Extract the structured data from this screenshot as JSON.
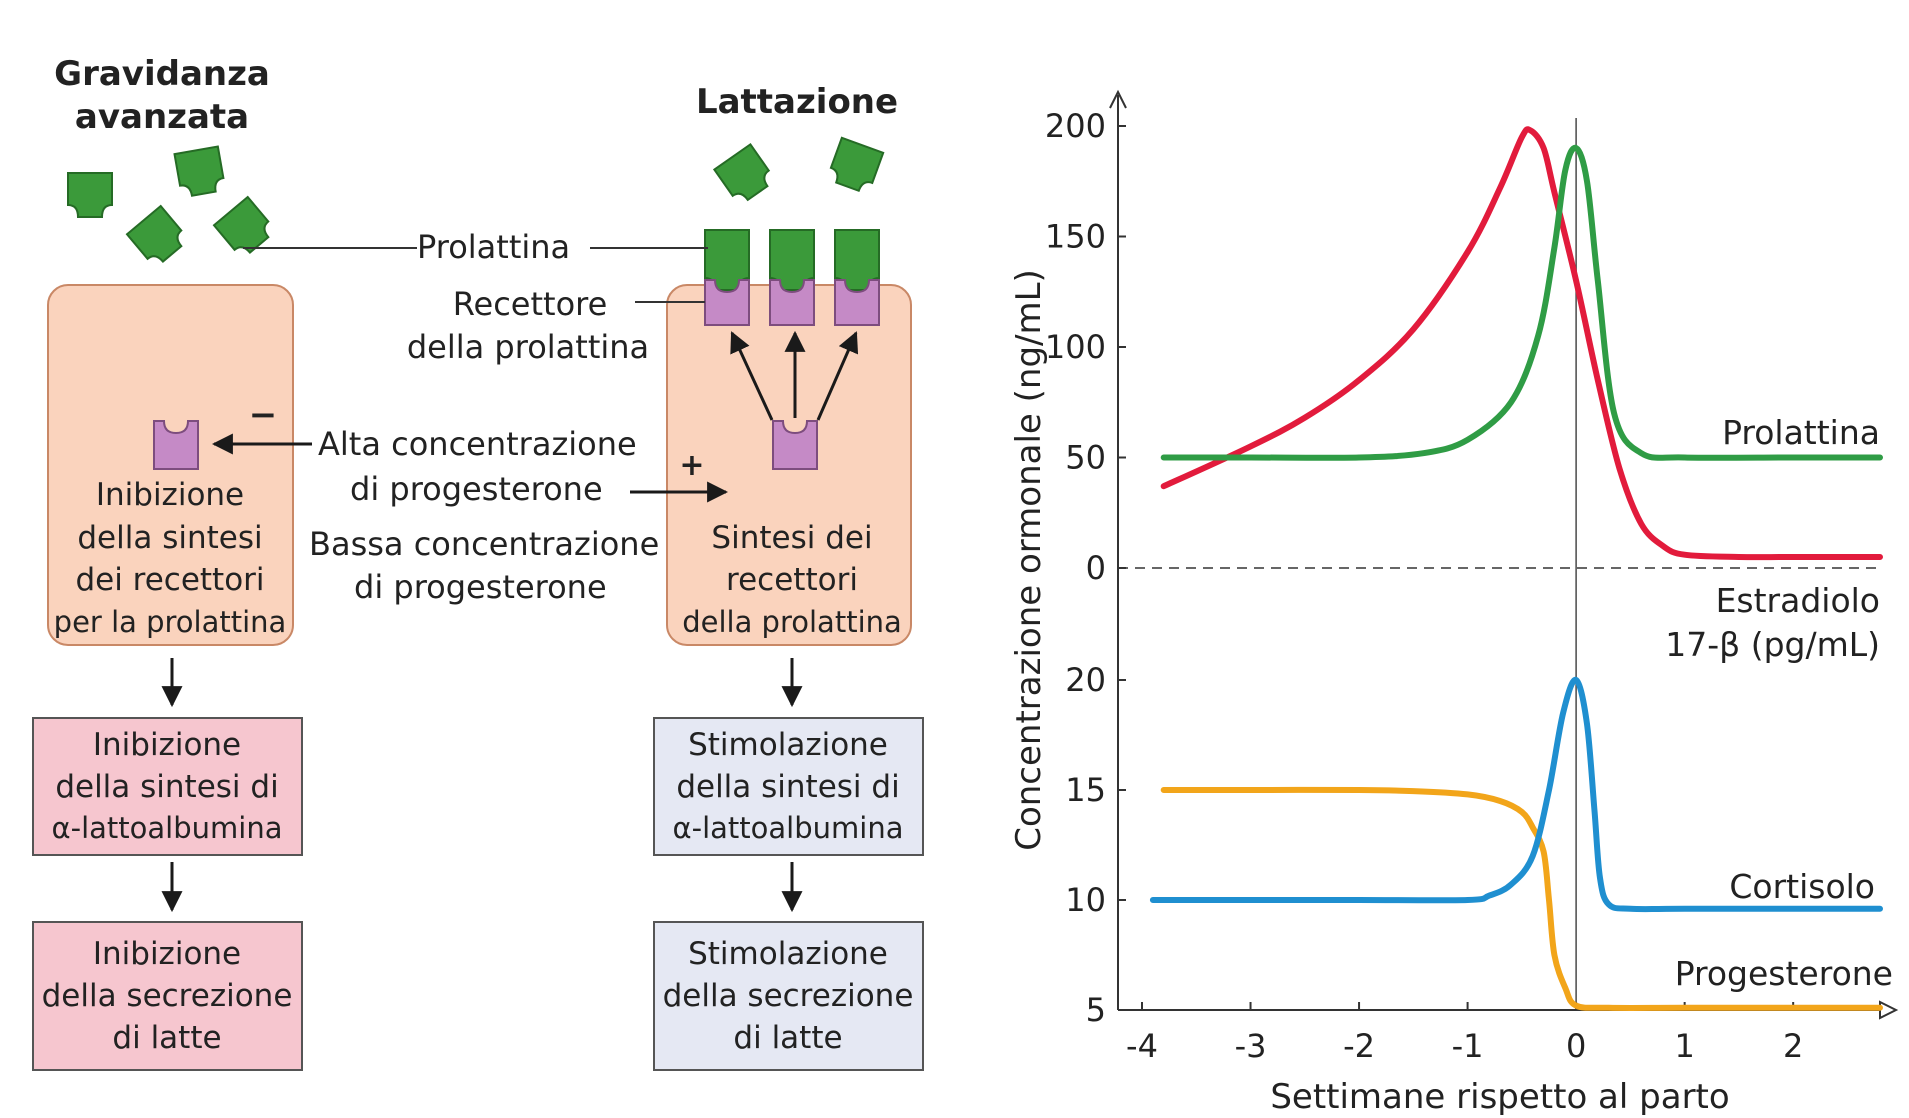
{
  "left": {
    "late_pregnancy_title": [
      "Gravidanza",
      "avanzata"
    ],
    "lactation_title": "Lattazione",
    "prolactin_label": "Prolattina",
    "receptor_label": [
      "Recettore",
      "della prolattina"
    ],
    "high_prog_label": [
      "Alta concentrazione",
      "di progesterone"
    ],
    "low_prog_label": [
      "Bassa concentrazione",
      "di progesterone"
    ],
    "minus_sign": "−",
    "plus_sign": "+",
    "left_cell_text": [
      "Inibizione",
      "della sintesi",
      "dei recettori",
      "per la prolattina"
    ],
    "right_cell_text": [
      "Sintesi dei",
      "recettori",
      "della prolattina"
    ],
    "left_box1": [
      "Inibizione",
      "della sintesi di",
      "α-lattoalbumina"
    ],
    "left_box2": [
      "Inibizione",
      "della secrezione",
      "di latte"
    ],
    "right_box1": [
      "Stimolazione",
      "della sintesi di",
      "α-lattoalbumina"
    ],
    "right_box2": [
      "Stimolazione",
      "della secrezione",
      "di latte"
    ],
    "colors": {
      "cell_fill": "#fad3bd",
      "cell_stroke": "#c98866",
      "pink_box": "#f6c6cf",
      "blue_box": "#e5e8f3",
      "prolactin_green": "#3b9a3a",
      "receptor_purple": "#c58ac6"
    }
  },
  "chart_data": {
    "type": "line",
    "xlabel": "Settimane rispetto al parto",
    "ylabel": "Concentrazione ormonale (ng/mL)",
    "x_ticks": [
      "-4",
      "-3",
      "-2",
      "-1",
      "0",
      "1",
      "2"
    ],
    "xlim": [
      -4,
      2.8
    ],
    "upper_panel": {
      "y_ticks": [
        "200",
        "150",
        "100",
        "50",
        "0"
      ],
      "ylim": [
        0,
        200
      ],
      "series": [
        {
          "name": "Prolattina",
          "color": "#2f9c45",
          "x": [
            -3.8,
            -3.0,
            -2.0,
            -1.4,
            -1.0,
            -0.6,
            -0.35,
            -0.2,
            -0.1,
            0.0,
            0.1,
            0.2,
            0.35,
            0.6,
            1.0,
            2.0,
            2.8
          ],
          "y": [
            50,
            50,
            50,
            52,
            58,
            75,
            105,
            145,
            180,
            190,
            175,
            130,
            70,
            52,
            50,
            50,
            50
          ]
        },
        {
          "name": "Estradiolo 17-β (pg/mL)",
          "color": "#e21b3c",
          "x": [
            -3.8,
            -3.0,
            -2.5,
            -2.0,
            -1.5,
            -1.0,
            -0.7,
            -0.5,
            -0.42,
            -0.3,
            -0.2,
            0.0,
            0.2,
            0.4,
            0.6,
            0.8,
            1.0,
            1.5,
            2.0,
            2.8
          ],
          "y": [
            37,
            55,
            68,
            85,
            108,
            143,
            172,
            195,
            198,
            190,
            170,
            130,
            85,
            45,
            20,
            10,
            6,
            5,
            5,
            5
          ]
        }
      ]
    },
    "lower_panel": {
      "y_ticks": [
        "20",
        "15",
        "10",
        "5"
      ],
      "ylim": [
        5,
        20
      ],
      "series": [
        {
          "name": "Cortisolo",
          "color": "#1f8fd0",
          "x": [
            -3.9,
            -3.0,
            -2.0,
            -1.0,
            -0.8,
            -0.6,
            -0.4,
            -0.25,
            -0.12,
            0.0,
            0.1,
            0.17,
            0.22,
            0.3,
            0.5,
            1.0,
            2.0,
            2.8
          ],
          "y": [
            10,
            10,
            10,
            10,
            10.2,
            10.7,
            12,
            15,
            18.5,
            20,
            18,
            14,
            11,
            9.8,
            9.6,
            9.6,
            9.6,
            9.6
          ]
        },
        {
          "name": "Progesterone",
          "color": "#f2a51a",
          "x": [
            -3.8,
            -3.0,
            -2.0,
            -1.5,
            -1.0,
            -0.7,
            -0.5,
            -0.4,
            -0.3,
            -0.25,
            -0.2,
            -0.1,
            0.0,
            0.3,
            1.0,
            2.0,
            2.8
          ],
          "y": [
            15,
            15,
            15,
            14.95,
            14.8,
            14.5,
            14,
            13.3,
            12.2,
            10,
            7.5,
            6,
            5.2,
            5.1,
            5.1,
            5.1,
            5.1
          ]
        }
      ]
    }
  }
}
